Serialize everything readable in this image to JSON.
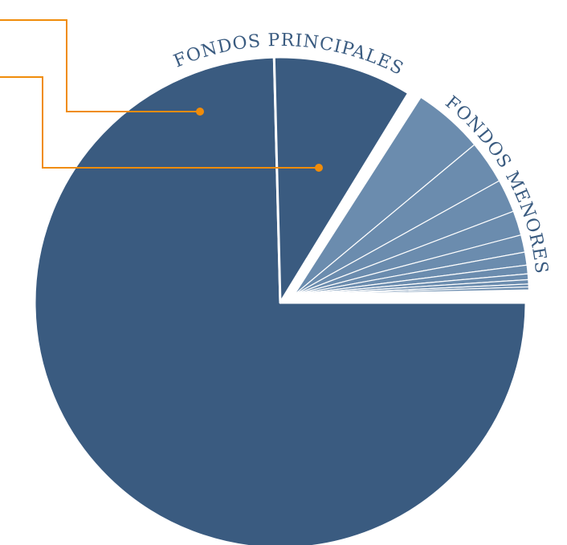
{
  "chart_data": {
    "type": "pie",
    "title": "",
    "start_angle_deg": 0,
    "direction": "clockwise",
    "groups": [
      {
        "name": "FONDOS PRINCIPALES",
        "color": "#3a5b80",
        "label_color": "#3a5b80",
        "slices": [
          75.1,
          9.2
        ]
      },
      {
        "name": "FONDOS MENORES",
        "color": "#6b8cae",
        "label_color": "#3a5b80",
        "slices": [
          4.9,
          3.0,
          2.3,
          1.7,
          1.2,
          0.9,
          0.6,
          0.4,
          0.3,
          0.2,
          0.2
        ]
      }
    ],
    "leader_line_color": "#f08c0a",
    "slice_separator_color": "#ffffff"
  }
}
